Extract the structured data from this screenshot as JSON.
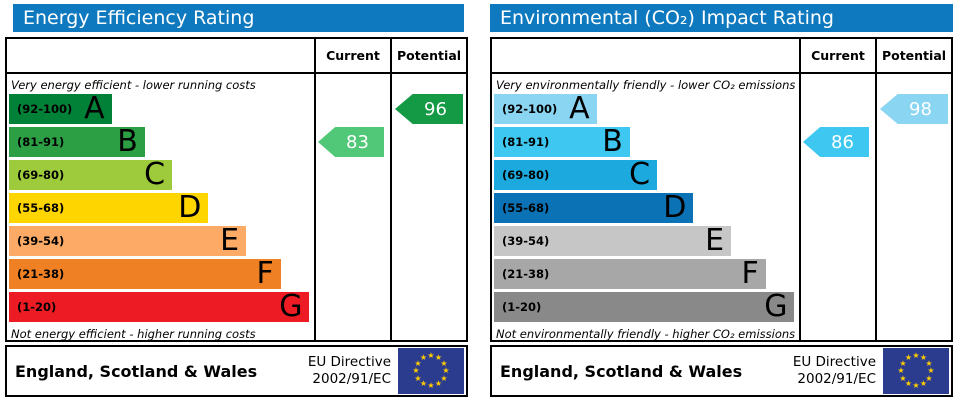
{
  "panels": [
    {
      "title": "Energy Efficiency Rating",
      "columns": {
        "current": "Current",
        "potential": "Potential"
      },
      "top_note": "Very energy efficient - lower running costs",
      "bottom_note": "Not energy efficient - higher running costs",
      "bands": [
        {
          "range": "(92-100)",
          "letter": "A",
          "color": "#008137",
          "width_pct": 34
        },
        {
          "range": "(81-91)",
          "letter": "B",
          "color": "#2c9f45",
          "width_pct": 45
        },
        {
          "range": "(69-80)",
          "letter": "C",
          "color": "#9dcb3c",
          "width_pct": 54
        },
        {
          "range": "(55-68)",
          "letter": "D",
          "color": "#ffd500",
          "width_pct": 66
        },
        {
          "range": "(39-54)",
          "letter": "E",
          "color": "#fcaa65",
          "width_pct": 78.5
        },
        {
          "range": "(21-38)",
          "letter": "F",
          "color": "#ef8023",
          "width_pct": 90
        },
        {
          "range": "(1-20)",
          "letter": "G",
          "color": "#ed1c24",
          "width_pct": 99.5
        }
      ],
      "current": {
        "value": "83",
        "band_index": 1,
        "color": "#50c878"
      },
      "potential": {
        "value": "96",
        "band_index": 0,
        "color": "#149a45"
      },
      "footer": {
        "region": "England, Scotland & Wales",
        "directive_line1": "EU Directive",
        "directive_line2": "2002/91/EC"
      }
    },
    {
      "title": "Environmental (CO₂) Impact Rating",
      "columns": {
        "current": "Current",
        "potential": "Potential"
      },
      "top_note": "Very environmentally friendly - lower CO₂ emissions",
      "bottom_note": "Not environmentally friendly - higher CO₂ emissions",
      "bands": [
        {
          "range": "(92-100)",
          "letter": "A",
          "color": "#8ad5f2",
          "width_pct": 34
        },
        {
          "range": "(81-91)",
          "letter": "B",
          "color": "#3ec7f0",
          "width_pct": 45
        },
        {
          "range": "(69-80)",
          "letter": "C",
          "color": "#1ca9de",
          "width_pct": 54
        },
        {
          "range": "(55-68)",
          "letter": "D",
          "color": "#0b72b5",
          "width_pct": 66
        },
        {
          "range": "(39-54)",
          "letter": "E",
          "color": "#c6c6c6",
          "width_pct": 78.5
        },
        {
          "range": "(21-38)",
          "letter": "F",
          "color": "#a7a7a7",
          "width_pct": 90
        },
        {
          "range": "(1-20)",
          "letter": "G",
          "color": "#898989",
          "width_pct": 99.5
        }
      ],
      "current": {
        "value": "86",
        "band_index": 1,
        "color": "#3ec7f0"
      },
      "potential": {
        "value": "98",
        "band_index": 0,
        "color": "#8ad5f2"
      },
      "footer": {
        "region": "England, Scotland & Wales",
        "directive_line1": "EU Directive",
        "directive_line2": "2002/91/EC"
      }
    }
  ],
  "colors": {
    "header_background": "#0e79bf",
    "header_text": "#ffffff",
    "border": "#000000",
    "eu_flag_background": "#2b3b8e",
    "eu_flag_star": "#ffcc00"
  },
  "eu_flag_star_count": 12,
  "chart_data": [
    {
      "type": "bar",
      "title": "Energy Efficiency Rating",
      "categories": [
        "A (92-100)",
        "B (81-91)",
        "C (69-80)",
        "D (55-68)",
        "E (39-54)",
        "F (21-38)",
        "G (1-20)"
      ],
      "band_ranges": [
        [
          92,
          100
        ],
        [
          81,
          91
        ],
        [
          69,
          80
        ],
        [
          55,
          68
        ],
        [
          39,
          54
        ],
        [
          21,
          38
        ],
        [
          1,
          20
        ]
      ],
      "current_rating": 83,
      "current_band": "B",
      "potential_rating": 96,
      "potential_band": "A",
      "top_annotation": "Very energy efficient - lower running costs",
      "bottom_annotation": "Not energy efficient - higher running costs",
      "region": "England, Scotland & Wales",
      "directive": "EU Directive 2002/91/EC"
    },
    {
      "type": "bar",
      "title": "Environmental (CO₂) Impact Rating",
      "categories": [
        "A (92-100)",
        "B (81-91)",
        "C (69-80)",
        "D (55-68)",
        "E (39-54)",
        "F (21-38)",
        "G (1-20)"
      ],
      "band_ranges": [
        [
          92,
          100
        ],
        [
          81,
          91
        ],
        [
          69,
          80
        ],
        [
          55,
          68
        ],
        [
          39,
          54
        ],
        [
          21,
          38
        ],
        [
          1,
          20
        ]
      ],
      "current_rating": 86,
      "current_band": "B",
      "potential_rating": 98,
      "potential_band": "A",
      "top_annotation": "Very environmentally friendly - lower CO₂ emissions",
      "bottom_annotation": "Not environmentally friendly - higher CO₂ emissions",
      "region": "England, Scotland & Wales",
      "directive": "EU Directive 2002/91/EC"
    }
  ]
}
